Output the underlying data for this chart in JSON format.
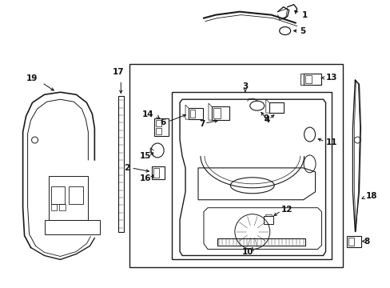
{
  "background_color": "#ffffff",
  "figsize": [
    4.89,
    3.6
  ],
  "dpi": 100,
  "line_color": "#1a1a1a",
  "font_size": 7.5,
  "text_color": "#111111"
}
